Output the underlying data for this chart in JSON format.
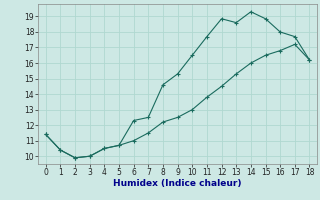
{
  "xlabel": "Humidex (Indice chaleur)",
  "ylabel": "",
  "bg_color": "#cde8e4",
  "line_color": "#1a6b5e",
  "grid_color": "#b0d8d0",
  "line1_x": [
    0,
    1,
    2,
    3,
    4,
    5,
    6,
    7,
    8,
    9,
    10,
    11,
    12,
    13,
    14,
    15,
    16,
    17,
    18
  ],
  "line1_y": [
    11.4,
    10.4,
    9.9,
    10.0,
    10.5,
    10.7,
    12.3,
    12.5,
    14.6,
    15.3,
    16.5,
    17.7,
    18.85,
    18.6,
    19.3,
    18.85,
    18.0,
    17.7,
    16.2
  ],
  "line2_x": [
    0,
    1,
    2,
    3,
    4,
    5,
    6,
    7,
    8,
    9,
    10,
    11,
    12,
    13,
    14,
    15,
    16,
    17,
    18
  ],
  "line2_y": [
    11.4,
    10.4,
    9.9,
    10.0,
    10.5,
    10.7,
    11.0,
    11.5,
    12.2,
    12.5,
    13.0,
    13.8,
    14.5,
    15.3,
    16.0,
    16.5,
    16.8,
    17.2,
    16.2
  ],
  "xlim": [
    -0.5,
    18.5
  ],
  "ylim": [
    9.5,
    19.8
  ],
  "xticks": [
    0,
    1,
    2,
    3,
    4,
    5,
    6,
    7,
    8,
    9,
    10,
    11,
    12,
    13,
    14,
    15,
    16,
    17,
    18
  ],
  "yticks": [
    10,
    11,
    12,
    13,
    14,
    15,
    16,
    17,
    18,
    19
  ],
  "xlabel_color": "#00008b",
  "xlabel_fontsize": 6.5,
  "tick_labelsize": 5.5
}
